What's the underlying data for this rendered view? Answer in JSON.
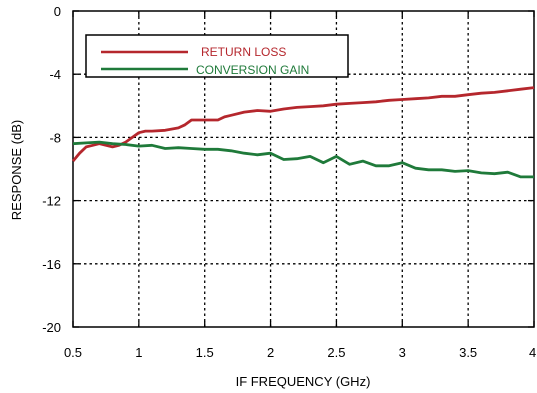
{
  "chart_data": {
    "type": "line",
    "title": "",
    "xlabel": "IF FREQUENCY (GHz)",
    "ylabel": "RESPONSE (dB)",
    "xlim": [
      0.5,
      4
    ],
    "ylim": [
      -20,
      0
    ],
    "xticks": [
      0.5,
      1,
      1.5,
      2,
      2.5,
      3,
      3.5,
      4
    ],
    "xtick_labels": [
      "0.5",
      "1",
      "1.5",
      "2",
      "2.5",
      "3",
      "3.5",
      "4"
    ],
    "yticks": [
      0,
      -4,
      -8,
      -12,
      -16,
      -20
    ],
    "ytick_labels": [
      "0",
      "-4",
      "-8",
      "-12",
      "-16",
      "-20"
    ],
    "grid": true,
    "grid_style": "dotted",
    "legend_position": "top-left",
    "series": [
      {
        "name": "RETURN LOSS",
        "color": "#b5272d",
        "x": [
          0.5,
          0.55,
          0.6,
          0.65,
          0.7,
          0.75,
          0.8,
          0.85,
          0.9,
          0.95,
          1.0,
          1.05,
          1.1,
          1.2,
          1.3,
          1.35,
          1.4,
          1.5,
          1.6,
          1.65,
          1.7,
          1.8,
          1.9,
          2.0,
          2.1,
          2.2,
          2.3,
          2.4,
          2.5,
          2.6,
          2.7,
          2.8,
          2.9,
          3.0,
          3.1,
          3.2,
          3.3,
          3.4,
          3.5,
          3.6,
          3.7,
          3.8,
          3.9,
          4.0
        ],
        "y": [
          -9.5,
          -9.0,
          -8.6,
          -8.5,
          -8.4,
          -8.5,
          -8.6,
          -8.5,
          -8.3,
          -8.0,
          -7.7,
          -7.6,
          -7.6,
          -7.55,
          -7.4,
          -7.2,
          -6.9,
          -6.9,
          -6.9,
          -6.7,
          -6.6,
          -6.4,
          -6.3,
          -6.35,
          -6.2,
          -6.1,
          -6.05,
          -6.0,
          -5.9,
          -5.85,
          -5.8,
          -5.75,
          -5.65,
          -5.6,
          -5.55,
          -5.5,
          -5.4,
          -5.4,
          -5.3,
          -5.2,
          -5.15,
          -5.05,
          -4.95,
          -4.85
        ]
      },
      {
        "name": "CONVERSION GAIN",
        "color": "#1f7a3a",
        "x": [
          0.5,
          0.6,
          0.7,
          0.8,
          0.9,
          1.0,
          1.1,
          1.2,
          1.3,
          1.4,
          1.5,
          1.6,
          1.7,
          1.8,
          1.9,
          2.0,
          2.1,
          2.2,
          2.3,
          2.4,
          2.5,
          2.6,
          2.7,
          2.8,
          2.9,
          3.0,
          3.1,
          3.2,
          3.3,
          3.4,
          3.5,
          3.6,
          3.7,
          3.8,
          3.9,
          4.0
        ],
        "y": [
          -8.4,
          -8.35,
          -8.3,
          -8.4,
          -8.45,
          -8.55,
          -8.5,
          -8.7,
          -8.65,
          -8.7,
          -8.75,
          -8.75,
          -8.85,
          -9.0,
          -9.1,
          -9.0,
          -9.4,
          -9.35,
          -9.2,
          -9.6,
          -9.2,
          -9.7,
          -9.5,
          -9.8,
          -9.8,
          -9.6,
          -9.95,
          -10.05,
          -10.05,
          -10.15,
          -10.1,
          -10.25,
          -10.3,
          -10.2,
          -10.5,
          -10.5
        ]
      }
    ]
  }
}
